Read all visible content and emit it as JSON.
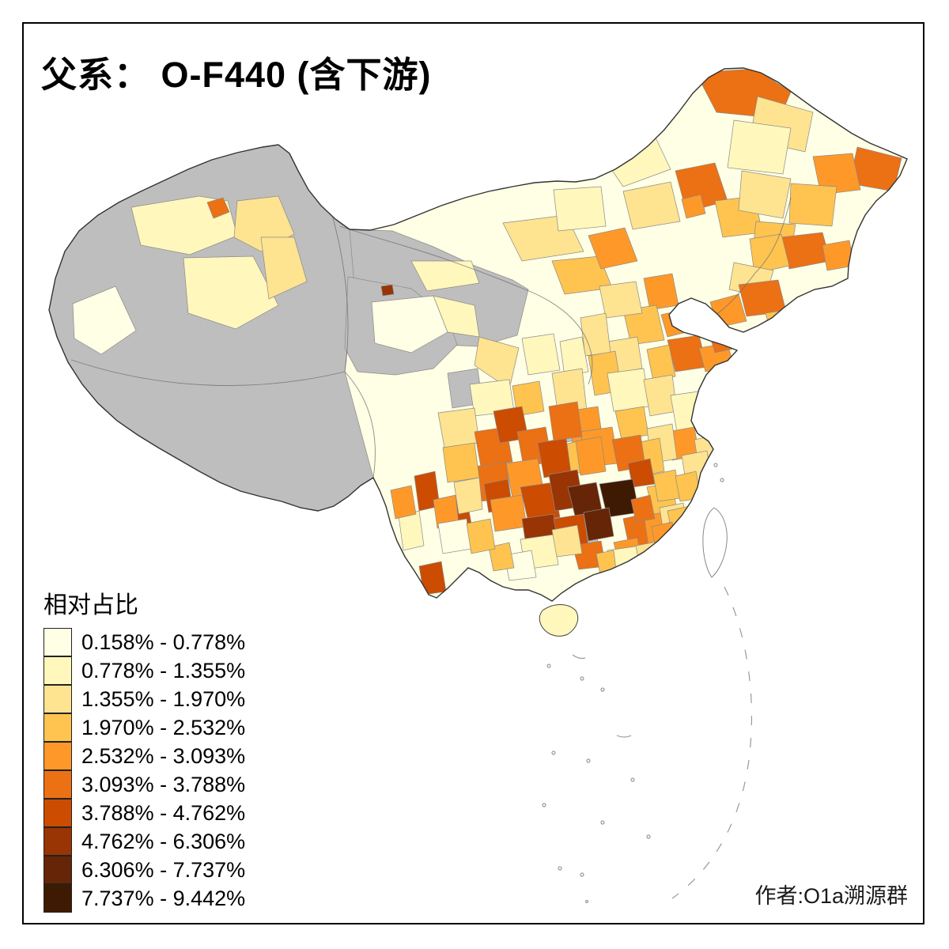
{
  "title": "父系： O-F440 (含下游)",
  "legend": {
    "title": "相对占比",
    "items": [
      {
        "range": "0.158% - 0.778%",
        "color": "#FFFFE5"
      },
      {
        "range": "0.778% - 1.355%",
        "color": "#FFF7BC"
      },
      {
        "range": "1.355% - 1.970%",
        "color": "#FEE391"
      },
      {
        "range": "1.970% - 2.532%",
        "color": "#FEC44F"
      },
      {
        "range": "2.532% - 3.093%",
        "color": "#FE9929"
      },
      {
        "range": "3.093% - 3.788%",
        "color": "#EC7014"
      },
      {
        "range": "3.788% - 4.762%",
        "color": "#CC4C02"
      },
      {
        "range": "4.762% - 6.306%",
        "color": "#993404"
      },
      {
        "range": "6.306% - 7.737%",
        "color": "#662506"
      },
      {
        "range": "7.737% - 9.442%",
        "color": "#3F1A03"
      }
    ]
  },
  "author": "作者:O1a溯源群",
  "map": {
    "no_data_color": "#BEBEBE",
    "national_border_color": "#333333",
    "prefecture_border_color": "#8A8A8A",
    "sea_mark_color": "#999999"
  }
}
